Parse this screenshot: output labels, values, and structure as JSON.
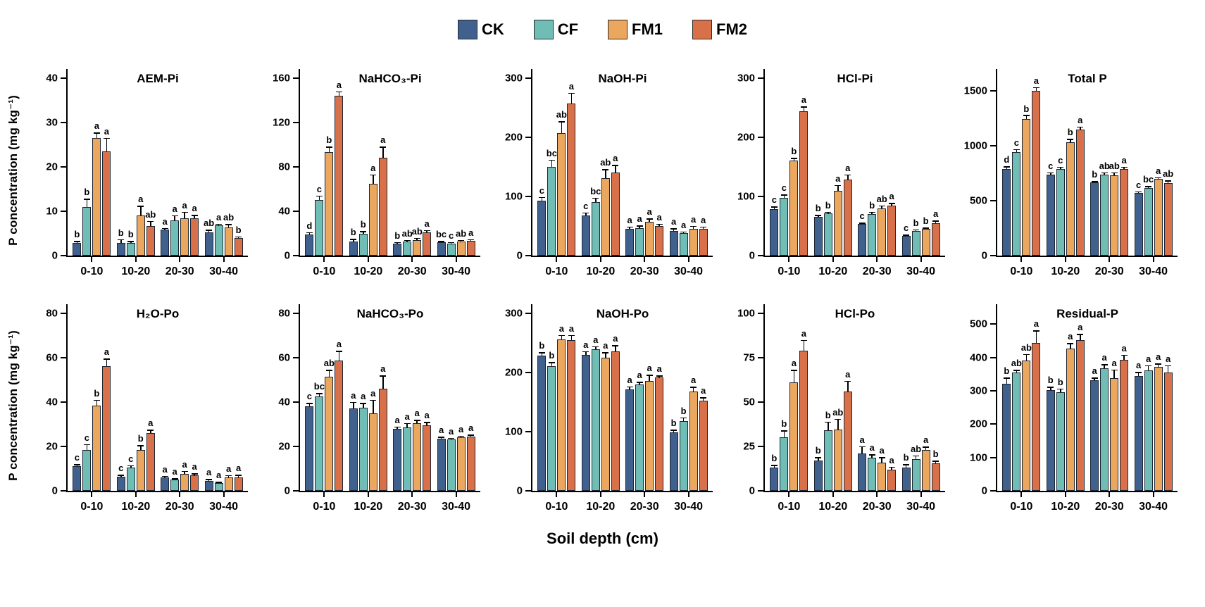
{
  "legend": {
    "items": [
      {
        "label": "CK",
        "color": "#40608D"
      },
      {
        "label": "CF",
        "color": "#6FBDB4"
      },
      {
        "label": "FM1",
        "color": "#ECA75F"
      },
      {
        "label": "FM2",
        "color": "#D8714A"
      }
    ]
  },
  "axes": {
    "y_label": "P concentration (mg kg⁻¹)",
    "x_label": "Soil depth (cm)"
  },
  "chart_data": [
    {
      "type": "bar",
      "row": 1,
      "title": "AEM-Pi",
      "categories": [
        "0-10",
        "10-20",
        "20-30",
        "30-40"
      ],
      "ylim": [
        0,
        42
      ],
      "yticks": [
        0,
        10,
        20,
        30,
        40
      ],
      "series": [
        {
          "name": "CK",
          "values": [
            2.8,
            2.9,
            5.9,
            5.2
          ],
          "errors": [
            0.5,
            0.8,
            0.3,
            0.6
          ],
          "letters": [
            "b",
            "b",
            "a",
            "ab"
          ]
        },
        {
          "name": "CF",
          "values": [
            11.0,
            2.9,
            7.9,
            6.8
          ],
          "errors": [
            1.8,
            0.4,
            1.2,
            0.4
          ],
          "letters": [
            "b",
            "b",
            "a",
            "a"
          ]
        },
        {
          "name": "FM1",
          "values": [
            26.5,
            9.0,
            8.4,
            6.3
          ],
          "errors": [
            1.2,
            2.2,
            1.5,
            0.8
          ],
          "letters": [
            "a",
            "a",
            "a",
            "ab"
          ]
        },
        {
          "name": "FM2",
          "values": [
            23.5,
            6.6,
            8.4,
            3.9
          ],
          "errors": [
            3.0,
            1.2,
            0.8,
            0.4
          ],
          "letters": [
            "a",
            "ab",
            "a",
            "b"
          ]
        }
      ]
    },
    {
      "type": "bar",
      "row": 1,
      "title": "NaHCO₃-Pi",
      "categories": [
        "0-10",
        "10-20",
        "20-30",
        "30-40"
      ],
      "ylim": [
        0,
        168
      ],
      "yticks": [
        0,
        40,
        80,
        120,
        160
      ],
      "series": [
        {
          "name": "CK",
          "values": [
            19,
            13,
            11,
            12
          ],
          "errors": [
            2,
            2,
            1,
            1
          ],
          "letters": [
            "d",
            "b",
            "b",
            "bc"
          ]
        },
        {
          "name": "CF",
          "values": [
            50,
            20,
            13,
            11
          ],
          "errors": [
            4,
            2,
            1,
            1
          ],
          "letters": [
            "c",
            "b",
            "ab",
            "c"
          ]
        },
        {
          "name": "FM1",
          "values": [
            93,
            65,
            14,
            13
          ],
          "errors": [
            5,
            8,
            2,
            1
          ],
          "letters": [
            "b",
            "a",
            "ab",
            "ab"
          ]
        },
        {
          "name": "FM2",
          "values": [
            144,
            88,
            21,
            13.5
          ],
          "errors": [
            4,
            10,
            2,
            1
          ],
          "letters": [
            "a",
            "a",
            "a",
            "a"
          ]
        }
      ]
    },
    {
      "type": "bar",
      "row": 1,
      "title": "NaOH-Pi",
      "categories": [
        "0-10",
        "10-20",
        "20-30",
        "30-40"
      ],
      "ylim": [
        0,
        315
      ],
      "yticks": [
        0,
        100,
        200,
        300
      ],
      "series": [
        {
          "name": "CK",
          "values": [
            93,
            68,
            45,
            42
          ],
          "errors": [
            6,
            5,
            4,
            4
          ],
          "letters": [
            "c",
            "c",
            "a",
            "a"
          ]
        },
        {
          "name": "CF",
          "values": [
            150,
            90,
            47,
            38
          ],
          "errors": [
            12,
            8,
            4,
            3
          ],
          "letters": [
            "bc",
            "bc",
            "a",
            "a"
          ]
        },
        {
          "name": "FM1",
          "values": [
            207,
            131,
            57,
            45
          ],
          "errors": [
            20,
            15,
            6,
            5
          ],
          "letters": [
            "ab",
            "ab",
            "a",
            "a"
          ]
        },
        {
          "name": "FM2",
          "values": [
            257,
            140,
            50,
            45
          ],
          "errors": [
            18,
            13,
            4,
            4
          ],
          "letters": [
            "a",
            "a",
            "a",
            "a"
          ]
        }
      ]
    },
    {
      "type": "bar",
      "row": 1,
      "title": "HCl-Pi",
      "categories": [
        "0-10",
        "10-20",
        "20-30",
        "30-40"
      ],
      "ylim": [
        0,
        315
      ],
      "yticks": [
        0,
        100,
        200,
        300
      ],
      "series": [
        {
          "name": "CK",
          "values": [
            79,
            66,
            53,
            33
          ],
          "errors": [
            4,
            3,
            2,
            2
          ],
          "letters": [
            "c",
            "b",
            "c",
            "c"
          ]
        },
        {
          "name": "CF",
          "values": [
            97,
            71,
            70,
            42
          ],
          "errors": [
            6,
            3,
            4,
            2
          ],
          "letters": [
            "c",
            "b",
            "b",
            "b"
          ]
        },
        {
          "name": "FM1",
          "values": [
            160,
            110,
            80,
            45
          ],
          "errors": [
            5,
            9,
            5,
            2
          ],
          "letters": [
            "b",
            "a",
            "ab",
            "b"
          ]
        },
        {
          "name": "FM2",
          "values": [
            244,
            128,
            85,
            55
          ],
          "errors": [
            8,
            9,
            4,
            4
          ],
          "letters": [
            "a",
            "a",
            "a",
            "a"
          ]
        }
      ]
    },
    {
      "type": "bar",
      "row": 1,
      "title": "Total P",
      "categories": [
        "0-10",
        "10-20",
        "20-30",
        "30-40"
      ],
      "ylim": [
        0,
        1700
      ],
      "yticks": [
        0,
        500,
        1000,
        1500
      ],
      "series": [
        {
          "name": "CK",
          "values": [
            790,
            740,
            665,
            570
          ],
          "errors": [
            25,
            20,
            15,
            15
          ],
          "letters": [
            "d",
            "c",
            "b",
            "c"
          ]
        },
        {
          "name": "CF",
          "values": [
            945,
            790,
            735,
            615
          ],
          "errors": [
            25,
            20,
            25,
            20
          ],
          "letters": [
            "c",
            "c",
            "ab",
            "bc"
          ]
        },
        {
          "name": "FM1",
          "values": [
            1245,
            1035,
            730,
            700
          ],
          "errors": [
            35,
            30,
            30,
            15
          ],
          "letters": [
            "b",
            "b",
            "ab",
            "a"
          ]
        },
        {
          "name": "FM2",
          "values": [
            1500,
            1150,
            790,
            660
          ],
          "errors": [
            35,
            25,
            20,
            25
          ],
          "letters": [
            "a",
            "a",
            "a",
            "ab"
          ]
        }
      ]
    },
    {
      "type": "bar",
      "row": 2,
      "title": "H₂O-Po",
      "categories": [
        "0-10",
        "10-20",
        "20-30",
        "30-40"
      ],
      "ylim": [
        0,
        84
      ],
      "yticks": [
        0,
        20,
        40,
        60,
        80
      ],
      "series": [
        {
          "name": "CK",
          "values": [
            11,
            6.5,
            6,
            4.5
          ],
          "errors": [
            1,
            0.8,
            0.8,
            0.8
          ],
          "letters": [
            "c",
            "c",
            "a",
            "a"
          ]
        },
        {
          "name": "CF",
          "values": [
            18.5,
            10.5,
            5,
            3.5
          ],
          "errors": [
            2.5,
            1,
            0.7,
            0.5
          ],
          "letters": [
            "c",
            "c",
            "a",
            "a"
          ]
        },
        {
          "name": "FM1",
          "values": [
            38.5,
            18.5,
            7.5,
            6
          ],
          "errors": [
            2.5,
            2,
            1.5,
            1
          ],
          "letters": [
            "b",
            "b",
            "a",
            "a"
          ]
        },
        {
          "name": "FM2",
          "values": [
            56,
            26,
            7,
            6
          ],
          "errors": [
            3.5,
            1.5,
            0.8,
            1.2
          ],
          "letters": [
            "a",
            "a",
            "a",
            "a"
          ]
        }
      ]
    },
    {
      "type": "bar",
      "row": 2,
      "title": "NaHCO₃-Po",
      "categories": [
        "0-10",
        "10-20",
        "20-30",
        "30-40"
      ],
      "ylim": [
        0,
        84
      ],
      "yticks": [
        0,
        20,
        40,
        60,
        80
      ],
      "series": [
        {
          "name": "CK",
          "values": [
            38,
            37,
            28,
            23.5
          ],
          "errors": [
            1.5,
            3,
            1,
            0.8
          ],
          "letters": [
            "c",
            "a",
            "a",
            "a"
          ]
        },
        {
          "name": "CF",
          "values": [
            42.5,
            37.5,
            28.5,
            23
          ],
          "errors": [
            1.5,
            2,
            2,
            0.8
          ],
          "letters": [
            "bc",
            "a",
            "a",
            "a"
          ]
        },
        {
          "name": "FM1",
          "values": [
            51.5,
            35,
            30.5,
            24
          ],
          "errors": [
            3,
            6,
            1.5,
            0.8
          ],
          "letters": [
            "ab",
            "a",
            "a",
            "a"
          ]
        },
        {
          "name": "FM2",
          "values": [
            58.5,
            46,
            29.5,
            24.5
          ],
          "errors": [
            4.5,
            6,
            1.5,
            0.8
          ],
          "letters": [
            "a",
            "a",
            "a",
            "a"
          ]
        }
      ]
    },
    {
      "type": "bar",
      "row": 2,
      "title": "NaOH-Po",
      "categories": [
        "0-10",
        "10-20",
        "20-30",
        "30-40"
      ],
      "ylim": [
        0,
        315
      ],
      "yticks": [
        0,
        100,
        200,
        300
      ],
      "series": [
        {
          "name": "CK",
          "values": [
            228,
            230,
            171,
            99
          ],
          "errors": [
            6,
            6,
            5,
            4
          ],
          "letters": [
            "b",
            "a",
            "a",
            "b"
          ]
        },
        {
          "name": "CF",
          "values": [
            210,
            239,
            179,
            118
          ],
          "errors": [
            7,
            5,
            5,
            6
          ],
          "letters": [
            "b",
            "a",
            "a",
            "b"
          ]
        },
        {
          "name": "FM1",
          "values": [
            256,
            225,
            186,
            168
          ],
          "errors": [
            7,
            9,
            10,
            8
          ],
          "letters": [
            "a",
            "a",
            "a",
            "a"
          ]
        },
        {
          "name": "FM2",
          "values": [
            254,
            236,
            192,
            152
          ],
          "errors": [
            9,
            10,
            3,
            6
          ],
          "letters": [
            "a",
            "a",
            "a",
            "a"
          ]
        }
      ]
    },
    {
      "type": "bar",
      "row": 2,
      "title": "HCl-Po",
      "categories": [
        "0-10",
        "10-20",
        "20-30",
        "30-40"
      ],
      "ylim": [
        0,
        105
      ],
      "yticks": [
        0,
        25,
        50,
        75,
        100
      ],
      "series": [
        {
          "name": "CK",
          "values": [
            13,
            17,
            21,
            13
          ],
          "errors": [
            1.5,
            2,
            4,
            2
          ],
          "letters": [
            "b",
            "b",
            "a",
            "b"
          ]
        },
        {
          "name": "CF",
          "values": [
            30,
            34,
            18.5,
            18
          ],
          "errors": [
            4,
            5,
            2,
            2
          ],
          "letters": [
            "b",
            "b",
            "a",
            "ab"
          ]
        },
        {
          "name": "FM1",
          "values": [
            61,
            34.5,
            16,
            23
          ],
          "errors": [
            7,
            6,
            3,
            2
          ],
          "letters": [
            "a",
            "ab",
            "a",
            "a"
          ]
        },
        {
          "name": "FM2",
          "values": [
            79,
            56,
            12,
            15.5
          ],
          "errors": [
            6,
            6,
            1.5,
            1.5
          ],
          "letters": [
            "a",
            "a",
            "a",
            "b"
          ]
        }
      ]
    },
    {
      "type": "bar",
      "row": 2,
      "title": "Residual-P",
      "categories": [
        "0-10",
        "10-20",
        "20-30",
        "30-40"
      ],
      "ylim": [
        0,
        560
      ],
      "yticks": [
        0,
        100,
        200,
        300,
        400,
        500
      ],
      "series": [
        {
          "name": "CK",
          "values": [
            322,
            302,
            332,
            345
          ],
          "errors": [
            18,
            10,
            8,
            12
          ],
          "letters": [
            "b",
            "b",
            "a",
            "a"
          ]
        },
        {
          "name": "CF",
          "values": [
            355,
            297,
            368,
            362
          ],
          "errors": [
            8,
            10,
            12,
            15
          ],
          "letters": [
            "ab",
            "b",
            "a",
            "a"
          ]
        },
        {
          "name": "FM1",
          "values": [
            390,
            428,
            339,
            372
          ],
          "errors": [
            20,
            15,
            25,
            10
          ],
          "letters": [
            "ab",
            "a",
            "a",
            "a"
          ]
        },
        {
          "name": "FM2",
          "values": [
            443,
            453,
            394,
            355
          ],
          "errors": [
            38,
            18,
            15,
            22
          ],
          "letters": [
            "a",
            "a",
            "a",
            "a"
          ]
        }
      ]
    }
  ]
}
